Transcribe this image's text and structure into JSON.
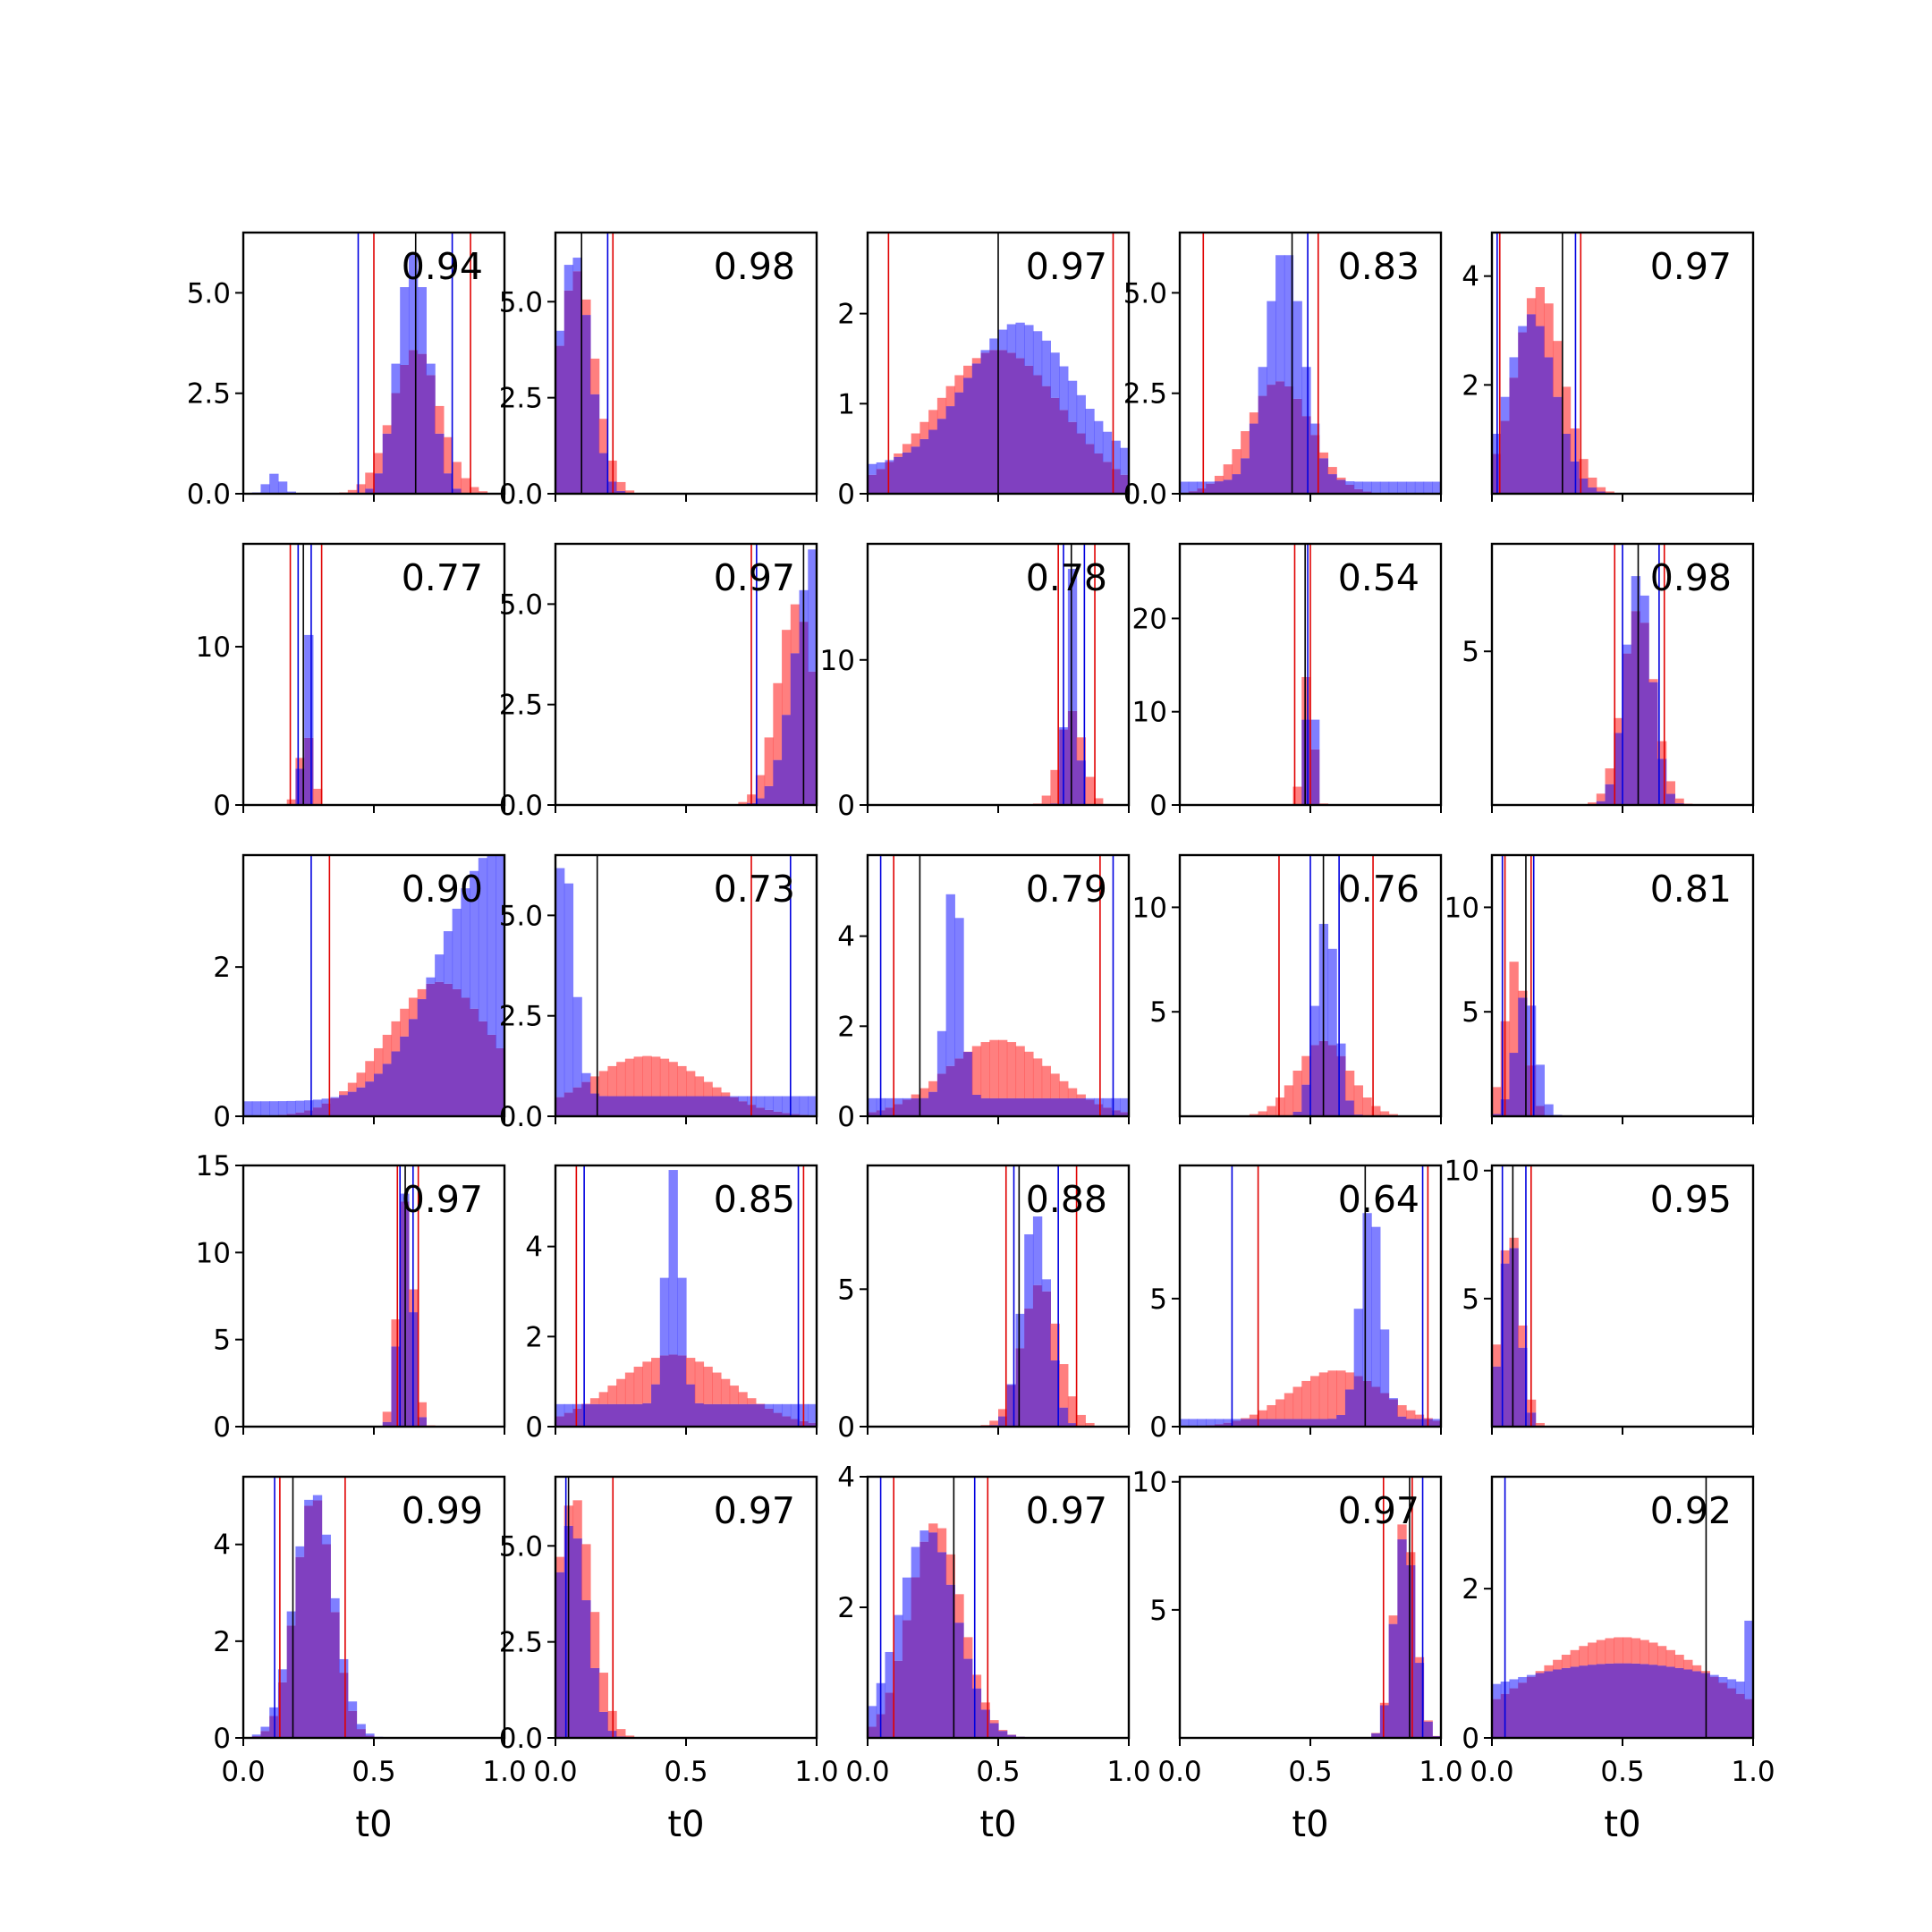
{
  "chart_data": {
    "type": "histogram-grid",
    "rows": 5,
    "cols": 5,
    "xlabel": "t0",
    "xlim": [
      0,
      1
    ],
    "x_ticks": [
      "0.0",
      "0.5",
      "1.0"
    ],
    "colors": {
      "series_a": "#ff4d4d",
      "series_b": "#4d4dff",
      "overlap": "#8040c0",
      "series_a_line": "#e00000",
      "series_b_line": "#0000e0",
      "center_line": "#000000"
    },
    "panels": [
      {
        "label": "0.94",
        "ylim": [
          0,
          6.5
        ],
        "yticks": [
          "0.0",
          "2.5",
          "5.0"
        ],
        "yticks_v": [
          0,
          2.5,
          5.0
        ],
        "a": {
          "mu": 0.66,
          "sigma": 0.09,
          "peak": 3.6
        },
        "b": {
          "mu": 0.65,
          "sigma": 0.06,
          "peak": 6.0,
          "extra": [
            [
              0.12,
              0.03,
              0.5
            ]
          ]
        },
        "lines": {
          "red": [
            0.5,
            0.87
          ],
          "blue": [
            0.44,
            0.8
          ],
          "black": [
            0.66
          ]
        }
      },
      {
        "label": "0.98",
        "ylim": [
          0,
          6.8
        ],
        "yticks": [
          "0.0",
          "2.5",
          "5.0"
        ],
        "yticks_v": [
          0,
          2.5,
          5.0
        ],
        "a": {
          "mu": 0.08,
          "sigma": 0.07,
          "peak": 5.8
        },
        "b": {
          "mu": 0.07,
          "sigma": 0.06,
          "peak": 6.3
        },
        "lines": {
          "red": [
            0.22
          ],
          "blue": [
            0.2
          ],
          "black": [
            0.1
          ]
        }
      },
      {
        "label": "0.97",
        "ylim": [
          0,
          2.9
        ],
        "yticks": [
          "0",
          "1",
          "2"
        ],
        "yticks_v": [
          0,
          1,
          2
        ],
        "a": {
          "mu": 0.5,
          "sigma": 0.24,
          "peak": 1.6
        },
        "b": {
          "mu": 0.58,
          "sigma": 0.2,
          "peak": 1.6,
          "base": 0.3
        },
        "lines": {
          "red": [
            0.08,
            0.94
          ],
          "blue": [],
          "black": [
            0.5
          ]
        }
      },
      {
        "label": "0.83",
        "ylim": [
          0,
          6.5
        ],
        "yticks": [
          "0.0",
          "2.5",
          "5.0"
        ],
        "yticks_v": [
          0,
          2.5,
          5.0
        ],
        "a": {
          "mu": 0.38,
          "sigma": 0.12,
          "peak": 2.8
        },
        "b": {
          "mu": 0.4,
          "sigma": 0.07,
          "peak": 5.8,
          "base": 0.3
        },
        "lines": {
          "red": [
            0.09,
            0.53
          ],
          "blue": [
            0.49
          ],
          "black": [
            0.43
          ]
        }
      },
      {
        "label": "0.97",
        "ylim": [
          0,
          4.8
        ],
        "yticks": [
          "2",
          "4"
        ],
        "yticks_v": [
          2,
          4
        ],
        "a": {
          "mu": 0.18,
          "sigma": 0.09,
          "peak": 3.8
        },
        "b": {
          "mu": 0.15,
          "sigma": 0.09,
          "peak": 3.3
        },
        "lines": {
          "red": [
            0.03,
            0.34
          ],
          "blue": [
            0.02,
            0.32
          ],
          "black": [
            0.27
          ]
        }
      },
      {
        "label": "0.77",
        "ylim": [
          0,
          16.5
        ],
        "yticks": [
          "0",
          "10"
        ],
        "yticks_v": [
          0,
          10
        ],
        "a": {
          "mu": 0.24,
          "sigma": 0.025,
          "peak": 4.6
        },
        "b": {
          "mu": 0.24,
          "sigma": 0.012,
          "peak": 15.2
        },
        "lines": {
          "red": [
            0.18,
            0.3
          ],
          "blue": [
            0.21,
            0.26
          ],
          "black": [
            0.23
          ]
        }
      },
      {
        "label": "0.97",
        "ylim": [
          0,
          6.5
        ],
        "yticks": [
          "0.0",
          "2.5",
          "5.0"
        ],
        "yticks_v": [
          0,
          2.5,
          5.0
        ],
        "a": {
          "mu": 0.92,
          "sigma": 0.07,
          "peak": 5.0
        },
        "b": {
          "mu": 1.0,
          "sigma": 0.08,
          "peak": 6.5
        },
        "lines": {
          "red": [
            0.75
          ],
          "blue": [
            0.77
          ],
          "black": [
            0.95
          ]
        }
      },
      {
        "label": "0.78",
        "ylim": [
          0,
          18
        ],
        "yticks": [
          "0",
          "10"
        ],
        "yticks_v": [
          0,
          10
        ],
        "a": {
          "mu": 0.78,
          "sigma": 0.045,
          "peak": 6.5
        },
        "b": {
          "mu": 0.78,
          "sigma": 0.02,
          "peak": 16.5
        },
        "lines": {
          "red": [
            0.73,
            0.87
          ],
          "blue": [
            0.75,
            0.83
          ],
          "black": [
            0.78
          ]
        }
      },
      {
        "label": "0.54",
        "ylim": [
          0,
          28
        ],
        "yticks": [
          "0",
          "10",
          "20"
        ],
        "yticks_v": [
          0,
          10,
          20
        ],
        "a": {
          "mu": 0.49,
          "sigma": 0.02,
          "peak": 14.5
        },
        "b": {
          "mu": 0.5,
          "sigma": 0.012,
          "peak": 24
        },
        "lines": {
          "red": [
            0.44,
            0.5
          ],
          "blue": [
            0.49
          ],
          "black": [
            0.48
          ]
        }
      },
      {
        "label": "0.98",
        "ylim": [
          0,
          8.5
        ],
        "yticks": [
          "5"
        ],
        "yticks_v": [
          5
        ],
        "a": {
          "mu": 0.56,
          "sigma": 0.06,
          "peak": 6.4
        },
        "b": {
          "mu": 0.56,
          "sigma": 0.05,
          "peak": 7.6
        },
        "lines": {
          "red": [
            0.47,
            0.66
          ],
          "blue": [
            0.5,
            0.64
          ],
          "black": [
            0.56
          ]
        }
      },
      {
        "label": "0.90",
        "ylim": [
          0,
          3.5
        ],
        "yticks": [
          "0",
          "2"
        ],
        "yticks_v": [
          0,
          2
        ],
        "a": {
          "mu": 0.75,
          "sigma": 0.2,
          "peak": 1.8
        },
        "b": {
          "mu": 0.98,
          "sigma": 0.22,
          "peak": 3.4,
          "base": 0.2
        },
        "lines": {
          "red": [
            0.33
          ],
          "blue": [
            0.26
          ],
          "black": []
        }
      },
      {
        "label": "0.73",
        "ylim": [
          0,
          6.5
        ],
        "yticks": [
          "0.0",
          "2.5",
          "5.0"
        ],
        "yticks_v": [
          0,
          2.5,
          5.0
        ],
        "a": {
          "mu": 0.35,
          "sigma": 0.22,
          "peak": 1.5
        },
        "b": {
          "mu": 0.03,
          "sigma": 0.04,
          "peak": 6.0,
          "base": 0.5
        },
        "lines": {
          "red": [
            0.75
          ],
          "blue": [
            0.9
          ],
          "black": [
            0.16
          ]
        }
      },
      {
        "label": "0.79",
        "ylim": [
          0,
          5.8
        ],
        "yticks": [
          "0",
          "2",
          "4"
        ],
        "yticks_v": [
          0,
          2,
          4
        ],
        "a": {
          "mu": 0.5,
          "sigma": 0.2,
          "peak": 1.7
        },
        "b": {
          "mu": 0.33,
          "sigma": 0.03,
          "peak": 5.0,
          "base": 0.4
        },
        "lines": {
          "red": [
            0.1,
            0.89
          ],
          "blue": [
            0.05,
            0.94
          ],
          "black": [
            0.2
          ]
        }
      },
      {
        "label": "0.76",
        "ylim": [
          0,
          12.5
        ],
        "yticks": [
          "5",
          "10"
        ],
        "yticks_v": [
          5,
          10
        ],
        "a": {
          "mu": 0.55,
          "sigma": 0.1,
          "peak": 3.6
        },
        "b": {
          "mu": 0.56,
          "sigma": 0.04,
          "peak": 9.5
        },
        "lines": {
          "red": [
            0.38,
            0.74
          ],
          "blue": [
            0.5,
            0.61
          ],
          "black": [
            0.55
          ]
        }
      },
      {
        "label": "0.81",
        "ylim": [
          0,
          12.5
        ],
        "yticks": [
          "5",
          "10"
        ],
        "yticks_v": [
          5,
          10
        ],
        "a": {
          "mu": 0.09,
          "sigma": 0.04,
          "peak": 7.5
        },
        "b": {
          "mu": 0.13,
          "sigma": 0.04,
          "peak": 6.0
        },
        "lines": {
          "red": [
            0.05,
            0.15
          ],
          "blue": [
            0.04,
            0.16
          ],
          "black": [
            0.13
          ]
        }
      },
      {
        "label": "0.97",
        "ylim": [
          0,
          15
        ],
        "yticks": [
          "0",
          "5",
          "10",
          "15"
        ],
        "yticks_v": [
          0,
          5,
          10,
          15
        ],
        "a": {
          "mu": 0.62,
          "sigma": 0.03,
          "peak": 13
        },
        "b": {
          "mu": 0.62,
          "sigma": 0.025,
          "peak": 13.5
        },
        "lines": {
          "red": [
            0.59,
            0.67
          ],
          "blue": [
            0.6,
            0.65
          ],
          "black": [
            0.62
          ]
        }
      },
      {
        "label": "0.85",
        "ylim": [
          0,
          5.8
        ],
        "yticks": [
          "0",
          "2",
          "4"
        ],
        "yticks_v": [
          0,
          2,
          4
        ],
        "a": {
          "mu": 0.45,
          "sigma": 0.22,
          "peak": 1.6
        },
        "b": {
          "mu": 0.45,
          "sigma": 0.03,
          "peak": 5.2,
          "base": 0.5
        },
        "lines": {
          "red": [
            0.08,
            0.95
          ],
          "blue": [
            0.11,
            0.93
          ],
          "black": []
        }
      },
      {
        "label": "0.88",
        "ylim": [
          0,
          9.5
        ],
        "yticks": [
          "0",
          "5"
        ],
        "yticks_v": [
          0,
          5
        ],
        "a": {
          "mu": 0.66,
          "sigma": 0.07,
          "peak": 5.2
        },
        "b": {
          "mu": 0.64,
          "sigma": 0.05,
          "peak": 7.8
        },
        "lines": {
          "red": [
            0.53,
            0.8
          ],
          "blue": [
            0.56,
            0.73
          ],
          "black": [
            0.58
          ]
        }
      },
      {
        "label": "0.64",
        "ylim": [
          0,
          10.2
        ],
        "yticks": [
          "0",
          "5"
        ],
        "yticks_v": [
          0,
          5
        ],
        "a": {
          "mu": 0.6,
          "sigma": 0.18,
          "peak": 2.2
        },
        "b": {
          "mu": 0.73,
          "sigma": 0.04,
          "peak": 8.5,
          "base": 0.3
        },
        "lines": {
          "red": [
            0.3,
            0.95
          ],
          "blue": [
            0.2,
            0.93
          ],
          "black": [
            0.71
          ]
        }
      },
      {
        "label": "0.95",
        "ylim": [
          0,
          10.2
        ],
        "yticks": [
          "5",
          "10"
        ],
        "yticks_v": [
          5,
          10
        ],
        "a": {
          "mu": 0.07,
          "sigma": 0.04,
          "peak": 7.8
        },
        "b": {
          "mu": 0.07,
          "sigma": 0.035,
          "peak": 7.5
        },
        "lines": {
          "red": [
            0.15
          ],
          "blue": [
            0.04,
            0.13
          ],
          "black": [
            0.08
          ]
        }
      },
      {
        "label": "0.99",
        "ylim": [
          0,
          5.4
        ],
        "yticks": [
          "0",
          "2",
          "4"
        ],
        "yticks_v": [
          0,
          2,
          4
        ],
        "a": {
          "mu": 0.27,
          "sigma": 0.07,
          "peak": 5.0
        },
        "b": {
          "mu": 0.27,
          "sigma": 0.075,
          "peak": 5.1
        },
        "lines": {
          "red": [
            0.14,
            0.39
          ],
          "blue": [
            0.12
          ],
          "black": [
            0.19
          ]
        }
      },
      {
        "label": "0.97",
        "ylim": [
          0,
          6.8
        ],
        "yticks": [
          "0.0",
          "2.5",
          "5.0"
        ],
        "yticks_v": [
          0,
          2.5,
          5.0
        ],
        "a": {
          "mu": 0.07,
          "sigma": 0.07,
          "peak": 6.3
        },
        "b": {
          "mu": 0.06,
          "sigma": 0.06,
          "peak": 5.6
        },
        "lines": {
          "red": [
            0.22
          ],
          "blue": [
            0.04
          ],
          "black": [
            0.05
          ]
        }
      },
      {
        "label": "0.97",
        "ylim": [
          0,
          4.0
        ],
        "yticks": [
          "2",
          "4"
        ],
        "yticks_v": [
          2,
          4
        ],
        "a": {
          "mu": 0.26,
          "sigma": 0.1,
          "peak": 3.3
        },
        "b": {
          "mu": 0.23,
          "sigma": 0.11,
          "peak": 3.2
        },
        "lines": {
          "red": [
            0.1,
            0.46
          ],
          "blue": [
            0.05,
            0.41
          ],
          "black": [
            0.33
          ]
        }
      },
      {
        "label": "0.97",
        "ylim": [
          0,
          10.2
        ],
        "yticks": [
          "5",
          "10"
        ],
        "yticks_v": [
          5,
          10
        ],
        "a": {
          "mu": 0.86,
          "sigma": 0.04,
          "peak": 8.6
        },
        "b": {
          "mu": 0.86,
          "sigma": 0.04,
          "peak": 8.0
        },
        "lines": {
          "red": [
            0.78,
            0.89
          ],
          "blue": [
            0.93
          ],
          "black": [
            0.88
          ]
        }
      },
      {
        "label": "0.92",
        "ylim": [
          0,
          3.5
        ],
        "yticks": [
          "0",
          "2"
        ],
        "yticks_v": [
          0,
          2
        ],
        "a": {
          "mu": 0.5,
          "sigma": 0.35,
          "peak": 1.35
        },
        "b": {
          "mu": 0.5,
          "sigma": 0.6,
          "peak": 1.0,
          "extra": [
            [
              1.0,
              0.01,
              3.4
            ]
          ]
        },
        "lines": {
          "red": [],
          "blue": [
            0.05
          ],
          "black": [
            0.82
          ]
        }
      }
    ]
  }
}
